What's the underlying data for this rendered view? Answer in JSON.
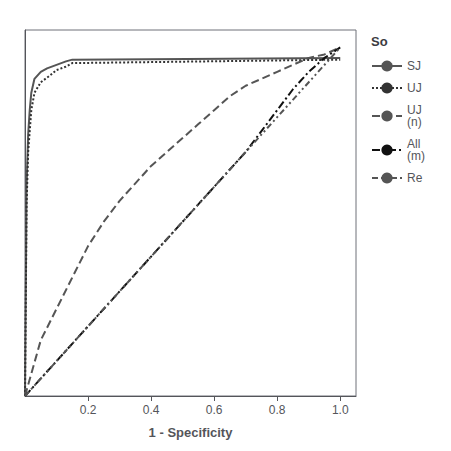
{
  "chart_data": {
    "type": "line",
    "xlabel": "1 - Specificity",
    "xlim": [
      0.0,
      1.05
    ],
    "ylim": [
      0.0,
      1.05
    ],
    "xticks": [
      0.2,
      0.4,
      0.6,
      0.8,
      {
        "value": 1.0,
        "label": "1.0"
      }
    ],
    "yticks": [],
    "tick_labels": "x",
    "grid": false,
    "legend": "right",
    "legend_title": "So",
    "series": [
      {
        "name": "SJ",
        "color": "#555555",
        "line_style": "solid",
        "x": [
          0.0,
          0.005,
          0.01,
          0.015,
          0.02,
          0.03,
          0.05,
          0.07,
          0.1,
          0.13,
          0.15,
          1.0
        ],
        "values": [
          0.0,
          0.6,
          0.75,
          0.82,
          0.87,
          0.91,
          0.93,
          0.94,
          0.95,
          0.96,
          0.965,
          0.97
        ]
      },
      {
        "name": "UJ",
        "color": "#333333",
        "line_style": "dotted",
        "x": [
          0.0,
          0.005,
          0.01,
          0.02,
          0.03,
          0.05,
          0.08,
          0.1,
          0.13,
          0.15,
          1.0
        ],
        "values": [
          0.0,
          0.55,
          0.7,
          0.82,
          0.87,
          0.9,
          0.92,
          0.935,
          0.945,
          0.955,
          0.965
        ]
      },
      {
        "name": "UJ\n(n)",
        "color": "#555555",
        "line_style": "dashed",
        "x": [
          0.0,
          0.05,
          0.1,
          0.15,
          0.2,
          0.25,
          0.3,
          0.35,
          0.4,
          0.45,
          0.5,
          0.55,
          0.6,
          0.65,
          0.7,
          0.75,
          0.8,
          0.85,
          0.9,
          0.95,
          1.0
        ],
        "values": [
          0.0,
          0.16,
          0.25,
          0.34,
          0.43,
          0.5,
          0.56,
          0.61,
          0.66,
          0.7,
          0.74,
          0.78,
          0.82,
          0.86,
          0.89,
          0.91,
          0.93,
          0.95,
          0.97,
          0.98,
          1.0
        ]
      },
      {
        "name": "All\n(m)",
        "color": "#111111",
        "line_style": "dashdot",
        "x": [
          0.0,
          0.1,
          0.2,
          0.3,
          0.4,
          0.5,
          0.6,
          0.7,
          0.75,
          0.8,
          0.85,
          0.9,
          0.95,
          1.0
        ],
        "values": [
          0.0,
          0.1,
          0.2,
          0.3,
          0.4,
          0.5,
          0.6,
          0.7,
          0.76,
          0.82,
          0.88,
          0.93,
          0.97,
          1.0
        ]
      },
      {
        "name": "Re",
        "color": "#555555",
        "line_style": "dashdotdot",
        "x": [
          0.0,
          1.0
        ],
        "values": [
          0.0,
          1.0
        ]
      }
    ]
  }
}
